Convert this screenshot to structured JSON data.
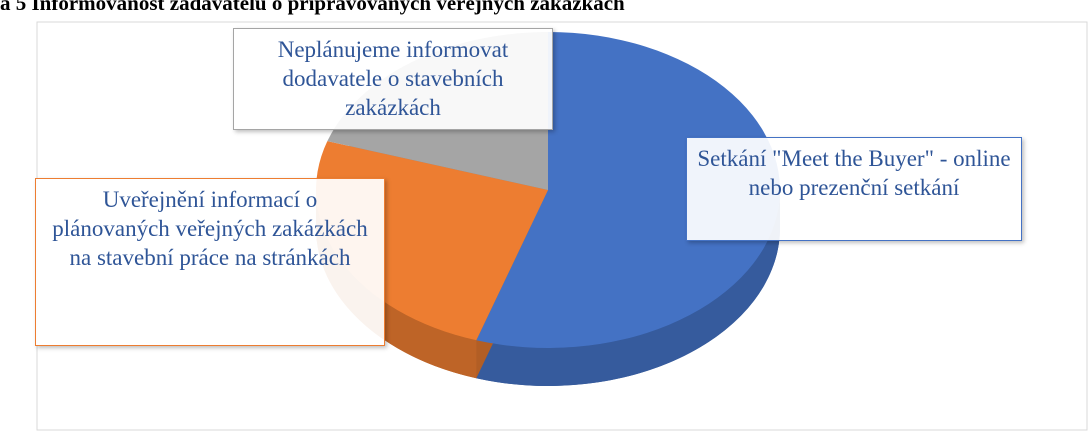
{
  "chart_data": {
    "type": "pie",
    "title": "a 5 Informovanost zadavatelů o připravovaných veřejných zakázkách",
    "categories": [
      "Setkání \"Meet the Buyer\" - online nebo prezenční setkání",
      "Uveřejnění informací o plánovaných veřejných zakázkách na stavební práce na stránkách",
      "Neplánujeme informovat dodavatele o stavebních zakázkách"
    ],
    "values": [
      55,
      25,
      20
    ],
    "colors": [
      "#4472c4",
      "#ed7d31",
      "#a5a5a5"
    ]
  }
}
